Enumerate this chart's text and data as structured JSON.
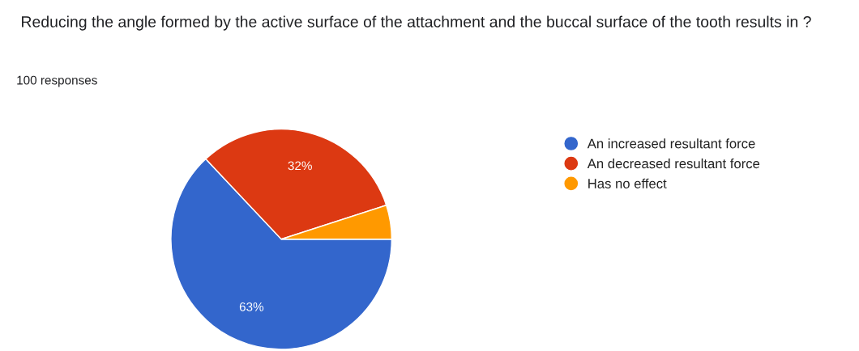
{
  "chart_data": {
    "type": "pie",
    "title": "Reducing the angle formed by the active surface of the attachment and the buccal surface of the tooth results in ?",
    "subtitle": "100 responses",
    "categories": [
      "An increased resultant force",
      "An decreased resultant force",
      "Has no effect"
    ],
    "values": [
      63,
      32,
      5
    ],
    "colors": [
      "#3366cc",
      "#dc3912",
      "#ff9900"
    ],
    "value_labels": [
      "63%",
      "32%",
      null
    ],
    "legend": "right"
  }
}
